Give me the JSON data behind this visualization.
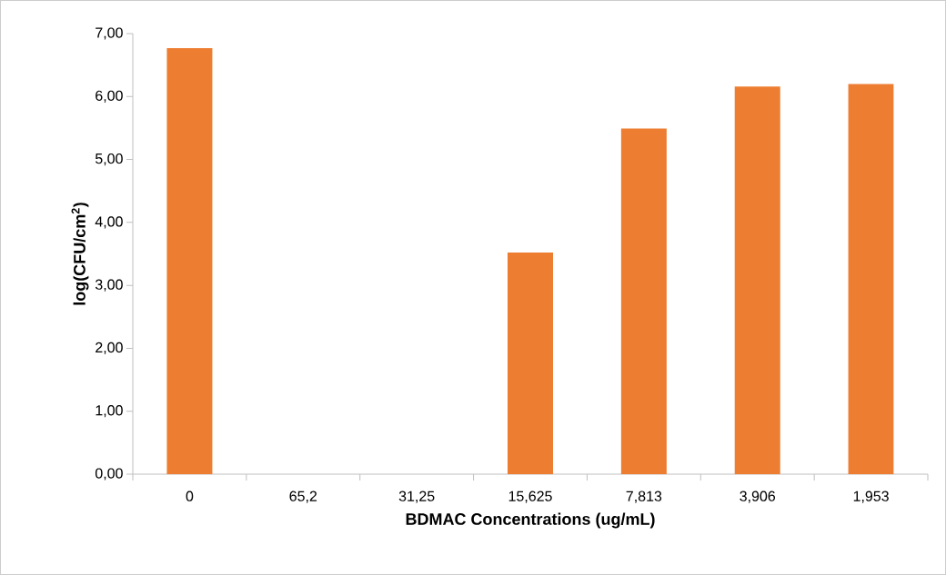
{
  "chart_data": {
    "type": "bar",
    "xlabel": "BDMAC Concentrations (ug/mL)",
    "ylabel": "log(CFU/cm$^{2}$)",
    "categories": [
      "0",
      "65,2",
      "31,25",
      "15,625",
      "7,813",
      "3,906",
      "1,953"
    ],
    "values": [
      6.77,
      0,
      0,
      3.52,
      5.49,
      6.16,
      6.2
    ],
    "color": "#ed7d31",
    "ylim": [
      0,
      7
    ],
    "yticks": [
      {
        "value": 0,
        "label": "0,00"
      },
      {
        "value": 1,
        "label": "1,00"
      },
      {
        "value": 2,
        "label": "2,00"
      },
      {
        "value": 3,
        "label": "3,00"
      },
      {
        "value": 4,
        "label": "4,00"
      },
      {
        "value": 5,
        "label": "5,00"
      },
      {
        "value": 6,
        "label": "6,00"
      },
      {
        "value": 7,
        "label": "7,00"
      }
    ],
    "grid": false
  }
}
